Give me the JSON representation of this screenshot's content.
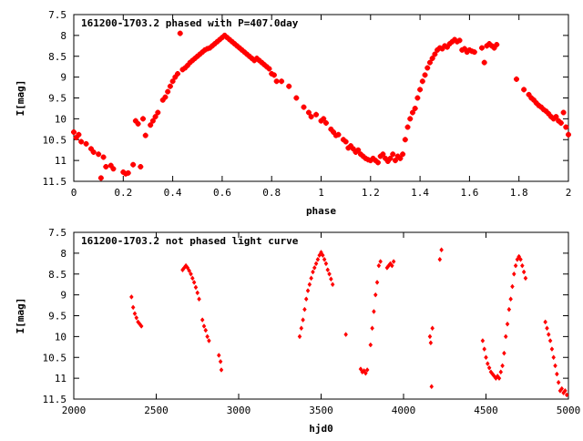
{
  "chart_data": [
    {
      "type": "scatter",
      "title": "161200-1703.2 phased with P=407.0day",
      "xlabel": "phase",
      "ylabel": "I[mag]",
      "xlim": [
        0,
        2
      ],
      "ylim": [
        11.5,
        7.5
      ],
      "y_inverted": true,
      "grid": false,
      "marker_color": "#ff0000",
      "x_ticks": [
        "0",
        "0.2",
        "0.4",
        "0.6",
        "0.8",
        "1",
        "1.2",
        "1.4",
        "1.6",
        "1.8",
        "2"
      ],
      "x_tick_values": [
        0,
        0.2,
        0.4,
        0.6,
        0.8,
        1.0,
        1.2,
        1.4,
        1.6,
        1.8,
        2.0
      ],
      "y_ticks": [
        "7.5",
        "8",
        "8.5",
        "9",
        "9.5",
        "10",
        "10.5",
        "11",
        "11.5"
      ],
      "y_tick_values": [
        7.5,
        8,
        8.5,
        9,
        9.5,
        10,
        10.5,
        11,
        11.5
      ],
      "points": [
        [
          0.0,
          10.32
        ],
        [
          0.01,
          10.45
        ],
        [
          0.02,
          10.38
        ],
        [
          0.03,
          10.55
        ],
        [
          0.05,
          10.6
        ],
        [
          0.07,
          10.72
        ],
        [
          0.08,
          10.8
        ],
        [
          0.1,
          10.85
        ],
        [
          0.11,
          11.42
        ],
        [
          0.12,
          10.92
        ],
        [
          0.13,
          11.15
        ],
        [
          0.15,
          11.12
        ],
        [
          0.16,
          11.2
        ],
        [
          0.2,
          11.28
        ],
        [
          0.21,
          11.32
        ],
        [
          0.22,
          11.3
        ],
        [
          0.24,
          11.1
        ],
        [
          0.25,
          10.05
        ],
        [
          0.26,
          10.12
        ],
        [
          0.27,
          11.15
        ],
        [
          0.28,
          10.0
        ],
        [
          0.29,
          10.4
        ],
        [
          0.31,
          10.15
        ],
        [
          0.32,
          10.05
        ],
        [
          0.33,
          9.95
        ],
        [
          0.34,
          9.85
        ],
        [
          0.36,
          9.55
        ],
        [
          0.37,
          9.48
        ],
        [
          0.38,
          9.35
        ],
        [
          0.39,
          9.22
        ],
        [
          0.4,
          9.1
        ],
        [
          0.41,
          9.0
        ],
        [
          0.42,
          8.92
        ],
        [
          0.43,
          7.95
        ],
        [
          0.44,
          8.82
        ],
        [
          0.45,
          8.78
        ],
        [
          0.46,
          8.72
        ],
        [
          0.47,
          8.65
        ],
        [
          0.48,
          8.6
        ],
        [
          0.49,
          8.55
        ],
        [
          0.5,
          8.5
        ],
        [
          0.51,
          8.45
        ],
        [
          0.52,
          8.4
        ],
        [
          0.53,
          8.35
        ],
        [
          0.54,
          8.32
        ],
        [
          0.55,
          8.3
        ],
        [
          0.56,
          8.25
        ],
        [
          0.57,
          8.2
        ],
        [
          0.58,
          8.15
        ],
        [
          0.59,
          8.1
        ],
        [
          0.6,
          8.05
        ],
        [
          0.61,
          8.0
        ],
        [
          0.62,
          8.05
        ],
        [
          0.63,
          8.1
        ],
        [
          0.64,
          8.15
        ],
        [
          0.65,
          8.2
        ],
        [
          0.66,
          8.25
        ],
        [
          0.67,
          8.3
        ],
        [
          0.68,
          8.35
        ],
        [
          0.69,
          8.4
        ],
        [
          0.7,
          8.45
        ],
        [
          0.71,
          8.5
        ],
        [
          0.72,
          8.55
        ],
        [
          0.73,
          8.6
        ],
        [
          0.74,
          8.55
        ],
        [
          0.75,
          8.6
        ],
        [
          0.76,
          8.65
        ],
        [
          0.77,
          8.7
        ],
        [
          0.78,
          8.75
        ],
        [
          0.79,
          8.8
        ],
        [
          0.8,
          8.92
        ],
        [
          0.81,
          8.95
        ],
        [
          0.82,
          9.1
        ],
        [
          0.84,
          9.1
        ],
        [
          0.87,
          9.22
        ],
        [
          0.9,
          9.5
        ],
        [
          0.93,
          9.72
        ],
        [
          0.95,
          9.85
        ],
        [
          0.96,
          9.95
        ],
        [
          0.98,
          9.9
        ],
        [
          1.0,
          10.05
        ],
        [
          1.01,
          10.0
        ],
        [
          1.02,
          10.1
        ],
        [
          1.04,
          10.25
        ],
        [
          1.05,
          10.32
        ],
        [
          1.06,
          10.4
        ],
        [
          1.07,
          10.38
        ],
        [
          1.09,
          10.5
        ],
        [
          1.1,
          10.55
        ],
        [
          1.11,
          10.7
        ],
        [
          1.12,
          10.65
        ],
        [
          1.13,
          10.72
        ],
        [
          1.14,
          10.8
        ],
        [
          1.15,
          10.75
        ],
        [
          1.16,
          10.85
        ],
        [
          1.17,
          10.9
        ],
        [
          1.18,
          10.95
        ],
        [
          1.19,
          10.98
        ],
        [
          1.2,
          11.0
        ],
        [
          1.21,
          10.95
        ],
        [
          1.22,
          11.0
        ],
        [
          1.23,
          11.05
        ],
        [
          1.24,
          10.9
        ],
        [
          1.25,
          10.85
        ],
        [
          1.26,
          10.95
        ],
        [
          1.27,
          11.02
        ],
        [
          1.28,
          10.95
        ],
        [
          1.29,
          10.85
        ],
        [
          1.3,
          11.0
        ],
        [
          1.31,
          10.9
        ],
        [
          1.32,
          10.95
        ],
        [
          1.33,
          10.85
        ],
        [
          1.34,
          10.5
        ],
        [
          1.35,
          10.2
        ],
        [
          1.36,
          10.0
        ],
        [
          1.37,
          9.85
        ],
        [
          1.38,
          9.75
        ],
        [
          1.39,
          9.5
        ],
        [
          1.4,
          9.3
        ],
        [
          1.41,
          9.1
        ],
        [
          1.42,
          8.95
        ],
        [
          1.43,
          8.78
        ],
        [
          1.44,
          8.65
        ],
        [
          1.45,
          8.55
        ],
        [
          1.46,
          8.45
        ],
        [
          1.47,
          8.35
        ],
        [
          1.48,
          8.3
        ],
        [
          1.49,
          8.32
        ],
        [
          1.5,
          8.25
        ],
        [
          1.51,
          8.28
        ],
        [
          1.52,
          8.2
        ],
        [
          1.53,
          8.15
        ],
        [
          1.54,
          8.1
        ],
        [
          1.55,
          8.15
        ],
        [
          1.56,
          8.12
        ],
        [
          1.57,
          8.35
        ],
        [
          1.58,
          8.32
        ],
        [
          1.59,
          8.4
        ],
        [
          1.6,
          8.35
        ],
        [
          1.61,
          8.38
        ],
        [
          1.62,
          8.4
        ],
        [
          1.65,
          8.3
        ],
        [
          1.66,
          8.65
        ],
        [
          1.67,
          8.25
        ],
        [
          1.68,
          8.2
        ],
        [
          1.69,
          8.25
        ],
        [
          1.7,
          8.3
        ],
        [
          1.71,
          8.22
        ],
        [
          1.79,
          9.05
        ],
        [
          1.82,
          9.3
        ],
        [
          1.84,
          9.42
        ],
        [
          1.85,
          9.5
        ],
        [
          1.86,
          9.55
        ],
        [
          1.87,
          9.62
        ],
        [
          1.88,
          9.68
        ],
        [
          1.89,
          9.72
        ],
        [
          1.9,
          9.78
        ],
        [
          1.91,
          9.82
        ],
        [
          1.92,
          9.88
        ],
        [
          1.93,
          9.95
        ],
        [
          1.94,
          10.0
        ],
        [
          1.95,
          9.95
        ],
        [
          1.96,
          10.05
        ],
        [
          1.97,
          10.1
        ],
        [
          1.98,
          9.85
        ],
        [
          1.99,
          10.2
        ],
        [
          2.0,
          10.38
        ]
      ]
    },
    {
      "type": "scatter",
      "title": "161200-1703.2 not phased light curve",
      "xlabel": "hjd0",
      "ylabel": "I[mag]",
      "xlim": [
        2000,
        5000
      ],
      "ylim": [
        11.5,
        7.5
      ],
      "y_inverted": true,
      "grid": false,
      "marker_color": "#ff0000",
      "x_ticks": [
        "2000",
        "2500",
        "3000",
        "3500",
        "4000",
        "4500",
        "5000"
      ],
      "x_tick_values": [
        2000,
        2500,
        3000,
        3500,
        4000,
        4500,
        5000
      ],
      "y_ticks": [
        "7.5",
        "8",
        "8.5",
        "9",
        "9.5",
        "10",
        "10.5",
        "11",
        "11.5"
      ],
      "y_tick_values": [
        7.5,
        8,
        8.5,
        9,
        9.5,
        10,
        10.5,
        11,
        11.5
      ],
      "points": [
        [
          2350,
          9.05
        ],
        [
          2360,
          9.3
        ],
        [
          2370,
          9.45
        ],
        [
          2380,
          9.55
        ],
        [
          2390,
          9.65
        ],
        [
          2400,
          9.7
        ],
        [
          2410,
          9.75
        ],
        [
          2660,
          8.4
        ],
        [
          2670,
          8.35
        ],
        [
          2680,
          8.3
        ],
        [
          2690,
          8.35
        ],
        [
          2700,
          8.42
        ],
        [
          2710,
          8.5
        ],
        [
          2720,
          8.6
        ],
        [
          2730,
          8.7
        ],
        [
          2740,
          8.82
        ],
        [
          2750,
          8.95
        ],
        [
          2760,
          9.1
        ],
        [
          2780,
          9.6
        ],
        [
          2790,
          9.75
        ],
        [
          2800,
          9.85
        ],
        [
          2810,
          10.0
        ],
        [
          2820,
          10.1
        ],
        [
          2880,
          10.45
        ],
        [
          2890,
          10.6
        ],
        [
          2895,
          10.8
        ],
        [
          3370,
          10.0
        ],
        [
          3380,
          9.8
        ],
        [
          3390,
          9.6
        ],
        [
          3400,
          9.35
        ],
        [
          3410,
          9.1
        ],
        [
          3420,
          8.9
        ],
        [
          3430,
          8.75
        ],
        [
          3440,
          8.6
        ],
        [
          3450,
          8.45
        ],
        [
          3460,
          8.35
        ],
        [
          3470,
          8.25
        ],
        [
          3480,
          8.15
        ],
        [
          3490,
          8.05
        ],
        [
          3500,
          7.98
        ],
        [
          3510,
          8.05
        ],
        [
          3520,
          8.15
        ],
        [
          3530,
          8.25
        ],
        [
          3540,
          8.4
        ],
        [
          3550,
          8.5
        ],
        [
          3560,
          8.62
        ],
        [
          3570,
          8.75
        ],
        [
          3650,
          9.95
        ],
        [
          3740,
          10.78
        ],
        [
          3750,
          10.85
        ],
        [
          3760,
          10.82
        ],
        [
          3770,
          10.88
        ],
        [
          3780,
          10.8
        ],
        [
          3800,
          10.2
        ],
        [
          3810,
          9.8
        ],
        [
          3820,
          9.4
        ],
        [
          3830,
          9.0
        ],
        [
          3840,
          8.7
        ],
        [
          3850,
          8.3
        ],
        [
          3860,
          8.2
        ],
        [
          3900,
          8.35
        ],
        [
          3910,
          8.3
        ],
        [
          3920,
          8.25
        ],
        [
          3930,
          8.3
        ],
        [
          3940,
          8.2
        ],
        [
          4160,
          10.0
        ],
        [
          4165,
          10.15
        ],
        [
          4170,
          11.2
        ],
        [
          4175,
          9.8
        ],
        [
          4220,
          8.15
        ],
        [
          4230,
          7.92
        ],
        [
          4480,
          10.1
        ],
        [
          4490,
          10.3
        ],
        [
          4500,
          10.5
        ],
        [
          4510,
          10.65
        ],
        [
          4520,
          10.75
        ],
        [
          4530,
          10.85
        ],
        [
          4540,
          10.9
        ],
        [
          4550,
          10.95
        ],
        [
          4560,
          11.0
        ],
        [
          4570,
          10.95
        ],
        [
          4580,
          11.0
        ],
        [
          4590,
          10.85
        ],
        [
          4600,
          10.7
        ],
        [
          4610,
          10.4
        ],
        [
          4620,
          10.0
        ],
        [
          4630,
          9.7
        ],
        [
          4640,
          9.35
        ],
        [
          4650,
          9.1
        ],
        [
          4660,
          8.8
        ],
        [
          4670,
          8.5
        ],
        [
          4680,
          8.3
        ],
        [
          4690,
          8.15
        ],
        [
          4700,
          8.08
        ],
        [
          4710,
          8.15
        ],
        [
          4720,
          8.3
        ],
        [
          4730,
          8.45
        ],
        [
          4740,
          8.6
        ],
        [
          4860,
          9.65
        ],
        [
          4870,
          9.8
        ],
        [
          4880,
          9.95
        ],
        [
          4890,
          10.1
        ],
        [
          4900,
          10.3
        ],
        [
          4910,
          10.5
        ],
        [
          4920,
          10.7
        ],
        [
          4930,
          10.9
        ],
        [
          4940,
          11.1
        ],
        [
          4950,
          11.3
        ],
        [
          4960,
          11.25
        ],
        [
          4970,
          11.35
        ],
        [
          4980,
          11.3
        ],
        [
          4990,
          11.4
        ]
      ]
    }
  ]
}
